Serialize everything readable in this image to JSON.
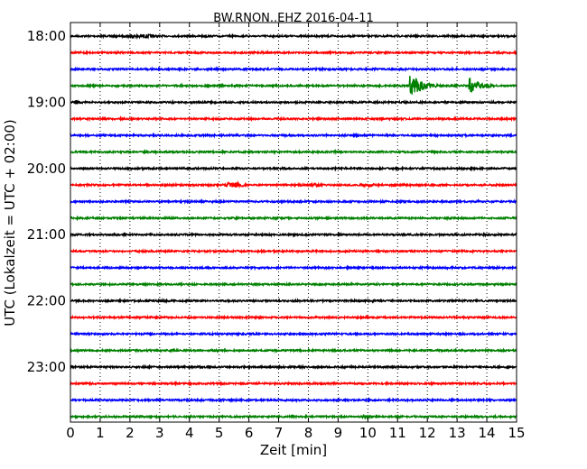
{
  "chart_data": {
    "type": "line",
    "title": "BW.RNON..EHZ 2016-04-11",
    "xlabel": "Zeit  [min]",
    "ylabel": "UTC (Lokalzeit = UTC + 02:00)",
    "xlim": [
      0,
      15
    ],
    "x_ticks": [
      "0",
      "1",
      "2",
      "3",
      "4",
      "5",
      "6",
      "7",
      "8",
      "9",
      "10",
      "11",
      "12",
      "13",
      "14",
      "15"
    ],
    "y_tick_labels": [
      "18:00",
      "19:00",
      "20:00",
      "21:00",
      "22:00",
      "23:00"
    ],
    "grid": true,
    "colors": [
      "#000000",
      "#ff0000",
      "#0000ff",
      "#008000"
    ],
    "trace_interval_min": 15,
    "series": [
      {
        "start": "18:00",
        "color": "#000000",
        "activity": [
          [
            1.5,
            3.2,
            2.2
          ],
          [
            4.4,
            4.7,
            1.5
          ]
        ]
      },
      {
        "start": "18:15",
        "color": "#ff0000",
        "activity": []
      },
      {
        "start": "18:30",
        "color": "#0000ff",
        "activity": []
      },
      {
        "start": "18:45",
        "color": "#008000",
        "activity": [
          [
            11.4,
            13.3,
            12
          ],
          [
            13.4,
            15.0,
            10
          ]
        ]
      },
      {
        "start": "19:00",
        "color": "#000000",
        "activity": [
          [
            0.0,
            0.4,
            2.5
          ]
        ]
      },
      {
        "start": "19:15",
        "color": "#ff0000",
        "activity": []
      },
      {
        "start": "19:30",
        "color": "#0000ff",
        "activity": []
      },
      {
        "start": "19:45",
        "color": "#008000",
        "activity": []
      },
      {
        "start": "20:00",
        "color": "#000000",
        "activity": []
      },
      {
        "start": "20:15",
        "color": "#ff0000",
        "activity": [
          [
            5.0,
            6.0,
            3
          ],
          [
            7.8,
            8.6,
            1.8
          ],
          [
            9.6,
            10.4,
            1.8
          ]
        ]
      },
      {
        "start": "20:30",
        "color": "#0000ff",
        "activity": []
      },
      {
        "start": "20:45",
        "color": "#008000",
        "activity": []
      },
      {
        "start": "21:00",
        "color": "#000000",
        "activity": []
      },
      {
        "start": "21:15",
        "color": "#ff0000",
        "activity": []
      },
      {
        "start": "21:30",
        "color": "#0000ff",
        "activity": []
      },
      {
        "start": "21:45",
        "color": "#008000",
        "activity": []
      },
      {
        "start": "22:00",
        "color": "#000000",
        "activity": []
      },
      {
        "start": "22:15",
        "color": "#ff0000",
        "activity": []
      },
      {
        "start": "22:30",
        "color": "#0000ff",
        "activity": []
      },
      {
        "start": "22:45",
        "color": "#008000",
        "activity": []
      },
      {
        "start": "23:00",
        "color": "#000000",
        "activity": []
      },
      {
        "start": "23:15",
        "color": "#ff0000",
        "activity": []
      },
      {
        "start": "23:30",
        "color": "#0000ff",
        "activity": []
      },
      {
        "start": "23:45",
        "color": "#008000",
        "activity": [
          [
            9.6,
            10.2,
            1.5
          ]
        ]
      }
    ]
  }
}
